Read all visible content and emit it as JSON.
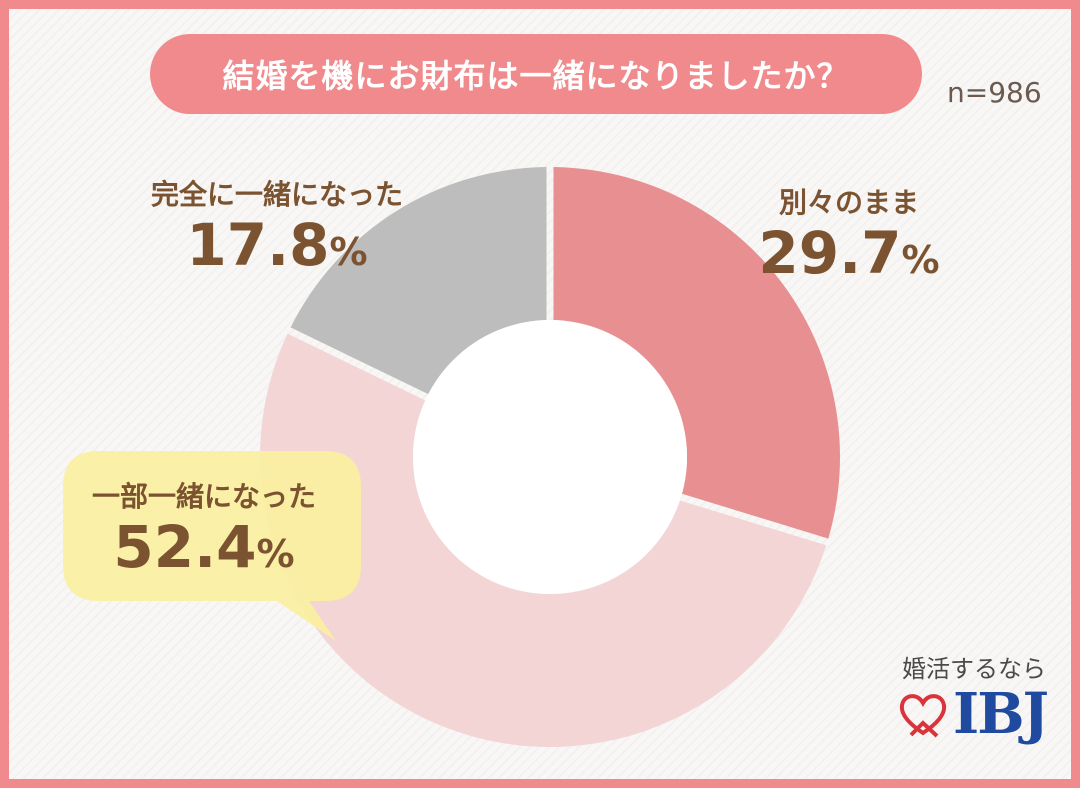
{
  "title": "結婚を機にお財布は一緒になりましたか？",
  "sample_size": "n=986",
  "chart_data": {
    "type": "pie",
    "donut": true,
    "categories": [
      "別々のまま",
      "一部一緒になった",
      "完全に一緒になった"
    ],
    "values": [
      29.7,
      52.4,
      17.8
    ],
    "unit": "%",
    "colors": [
      "#e88f91",
      "#f3d5d6",
      "#bdbdbd"
    ],
    "highlighted": "一部一緒になった"
  },
  "labels": {
    "separate": {
      "name": "別々のまま",
      "value": "29.7",
      "unit": "%"
    },
    "partial": {
      "name": "一部一緒になった",
      "value": "52.4",
      "unit": "%"
    },
    "full": {
      "name": "完全に一緒になった",
      "value": "17.8",
      "unit": "%"
    }
  },
  "logo": {
    "caption": "婚活するなら",
    "text": "IBJ"
  },
  "colors": {
    "frame": "#f08a8c",
    "label_text": "#7b5330",
    "bubble": "#fbef9f",
    "logo_blue": "#1f4aa0",
    "logo_red": "#d9343b"
  }
}
